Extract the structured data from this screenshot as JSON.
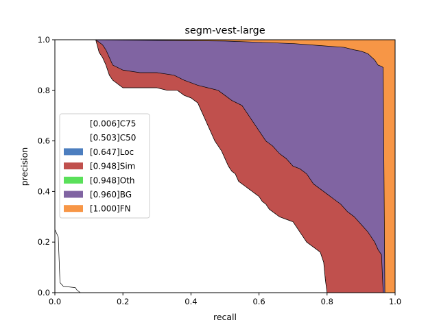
{
  "chart_data": {
    "type": "area",
    "title": "segm-vest-large",
    "xlabel": "recall",
    "ylabel": "precision",
    "xlim": [
      0,
      1
    ],
    "ylim": [
      0,
      1
    ],
    "x_ticks": [
      "0.0",
      "0.2",
      "0.4",
      "0.6",
      "0.8",
      "1.0"
    ],
    "y_ticks": [
      "0.0",
      "0.2",
      "0.4",
      "0.6",
      "0.8",
      "1.0"
    ],
    "x_tick_values": [
      0,
      0.2,
      0.4,
      0.6,
      0.8,
      1.0
    ],
    "y_tick_values": [
      0,
      0.2,
      0.4,
      0.6,
      0.8,
      1.0
    ],
    "legend_position": "center-left",
    "series": [
      {
        "name": "[0.006]C75",
        "color": "#ffffff",
        "points": [
          [
            0,
            0.25
          ],
          [
            0.01,
            0.22
          ],
          [
            0.015,
            0.04
          ],
          [
            0.025,
            0.025
          ],
          [
            0.06,
            0.02
          ],
          [
            0.065,
            0.01
          ],
          [
            0.075,
            0
          ]
        ]
      },
      {
        "name": "[0.503]C50",
        "color": "#ffffff",
        "points": []
      },
      {
        "name": "[0.647]Loc",
        "color": "#4c7ebf",
        "points": [
          [
            0.12,
            1.0
          ],
          [
            0.13,
            0.95
          ],
          [
            0.14,
            0.93
          ],
          [
            0.15,
            0.9
          ],
          [
            0.16,
            0.86
          ],
          [
            0.17,
            0.84
          ],
          [
            0.18,
            0.83
          ],
          [
            0.19,
            0.82
          ],
          [
            0.2,
            0.81
          ],
          [
            0.25,
            0.81
          ],
          [
            0.28,
            0.81
          ],
          [
            0.3,
            0.81
          ],
          [
            0.33,
            0.8
          ],
          [
            0.36,
            0.8
          ],
          [
            0.38,
            0.78
          ],
          [
            0.4,
            0.77
          ],
          [
            0.42,
            0.75
          ],
          [
            0.43,
            0.72
          ],
          [
            0.44,
            0.69
          ],
          [
            0.45,
            0.66
          ],
          [
            0.46,
            0.63
          ],
          [
            0.47,
            0.6
          ],
          [
            0.48,
            0.58
          ],
          [
            0.49,
            0.56
          ],
          [
            0.5,
            0.53
          ],
          [
            0.51,
            0.5
          ],
          [
            0.52,
            0.48
          ],
          [
            0.53,
            0.47
          ],
          [
            0.54,
            0.44
          ],
          [
            0.55,
            0.43
          ],
          [
            0.56,
            0.42
          ],
          [
            0.57,
            0.41
          ],
          [
            0.58,
            0.4
          ],
          [
            0.59,
            0.39
          ],
          [
            0.6,
            0.38
          ],
          [
            0.61,
            0.36
          ],
          [
            0.62,
            0.35
          ],
          [
            0.63,
            0.33
          ],
          [
            0.64,
            0.32
          ],
          [
            0.65,
            0.31
          ],
          [
            0.66,
            0.3
          ],
          [
            0.68,
            0.29
          ],
          [
            0.7,
            0.28
          ],
          [
            0.71,
            0.26
          ],
          [
            0.72,
            0.24
          ],
          [
            0.73,
            0.22
          ],
          [
            0.74,
            0.2
          ],
          [
            0.76,
            0.18
          ],
          [
            0.78,
            0.16
          ],
          [
            0.79,
            0.12
          ],
          [
            0.795,
            0.05
          ],
          [
            0.8,
            0
          ]
        ]
      },
      {
        "name": "[0.948]Sim",
        "color": "#c0504d",
        "points": [
          [
            0.12,
            1.0
          ],
          [
            0.14,
            0.98
          ],
          [
            0.15,
            0.96
          ],
          [
            0.16,
            0.93
          ],
          [
            0.17,
            0.9
          ],
          [
            0.2,
            0.88
          ],
          [
            0.25,
            0.87
          ],
          [
            0.3,
            0.87
          ],
          [
            0.35,
            0.86
          ],
          [
            0.38,
            0.84
          ],
          [
            0.4,
            0.83
          ],
          [
            0.42,
            0.82
          ],
          [
            0.45,
            0.81
          ],
          [
            0.48,
            0.8
          ],
          [
            0.5,
            0.78
          ],
          [
            0.52,
            0.76
          ],
          [
            0.55,
            0.74
          ],
          [
            0.56,
            0.72
          ],
          [
            0.57,
            0.7
          ],
          [
            0.58,
            0.68
          ],
          [
            0.59,
            0.66
          ],
          [
            0.6,
            0.64
          ],
          [
            0.61,
            0.62
          ],
          [
            0.62,
            0.6
          ],
          [
            0.64,
            0.58
          ],
          [
            0.66,
            0.55
          ],
          [
            0.68,
            0.53
          ],
          [
            0.7,
            0.5
          ],
          [
            0.72,
            0.49
          ],
          [
            0.74,
            0.47
          ],
          [
            0.75,
            0.45
          ],
          [
            0.76,
            0.43
          ],
          [
            0.78,
            0.41
          ],
          [
            0.8,
            0.39
          ],
          [
            0.82,
            0.37
          ],
          [
            0.84,
            0.35
          ],
          [
            0.86,
            0.32
          ],
          [
            0.88,
            0.3
          ],
          [
            0.9,
            0.27
          ],
          [
            0.92,
            0.24
          ],
          [
            0.94,
            0.2
          ],
          [
            0.95,
            0.17
          ],
          [
            0.96,
            0.15
          ],
          [
            0.965,
            0
          ]
        ]
      },
      {
        "name": "[0.948]Oth",
        "color": "#5ae05a",
        "points": []
      },
      {
        "name": "[0.960]BG",
        "color": "#8064a2",
        "points": [
          [
            0.12,
            1.0
          ],
          [
            0.5,
            0.995
          ],
          [
            0.6,
            0.99
          ],
          [
            0.7,
            0.985
          ],
          [
            0.75,
            0.98
          ],
          [
            0.8,
            0.975
          ],
          [
            0.85,
            0.97
          ],
          [
            0.88,
            0.96
          ],
          [
            0.9,
            0.955
          ],
          [
            0.92,
            0.945
          ],
          [
            0.94,
            0.92
          ],
          [
            0.95,
            0.9
          ],
          [
            0.96,
            0.895
          ],
          [
            0.965,
            0.89
          ],
          [
            0.97,
            0
          ]
        ]
      },
      {
        "name": "[1.000]FN",
        "color": "#f79646",
        "points": [
          [
            0.97,
            1.0
          ],
          [
            1.0,
            1.0
          ],
          [
            1.0,
            0
          ]
        ]
      }
    ]
  }
}
